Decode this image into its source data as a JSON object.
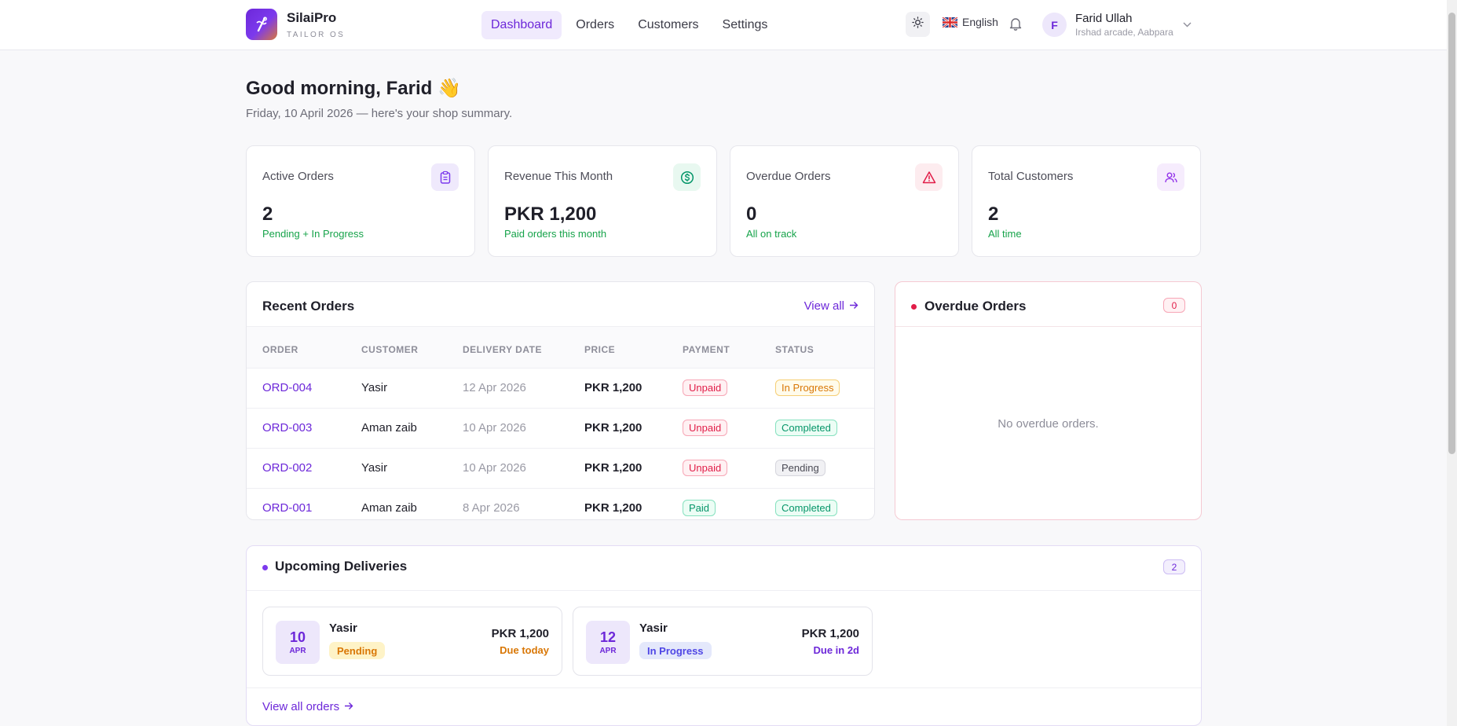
{
  "brand": {
    "name": "SilaiPro",
    "tagline": "TAILOR OS",
    "logo_icon": "needle-logo-icon"
  },
  "nav": {
    "items": [
      {
        "label": "Dashboard",
        "active": true
      },
      {
        "label": "Orders",
        "active": false
      },
      {
        "label": "Customers",
        "active": false
      },
      {
        "label": "Settings",
        "active": false
      }
    ]
  },
  "header": {
    "theme_icon": "sun-icon",
    "language": "English",
    "notification_icon": "bell-icon",
    "user": {
      "initial": "F",
      "name": "Farid Ullah",
      "location": "Irshad arcade, Aabpara"
    }
  },
  "greeting": {
    "title": "Good morning, Farid 👋",
    "subtitle": "Friday, 10 April 2026 — here's your shop summary."
  },
  "stats": [
    {
      "label": "Active Orders",
      "value": "2",
      "note": "Pending + In Progress",
      "icon": "clipboard-icon",
      "icon_color": "#7c3aed",
      "icon_bg": "#efe9fc"
    },
    {
      "label": "Revenue This Month",
      "value": "PKR 1,200",
      "note": "Paid orders this month",
      "icon": "dollar-circle-icon",
      "icon_color": "#059669",
      "icon_bg": "#e8f8f0"
    },
    {
      "label": "Overdue Orders",
      "value": "0",
      "note": "All on track",
      "icon": "warning-icon",
      "icon_color": "#e11d48",
      "icon_bg": "#fdecef"
    },
    {
      "label": "Total Customers",
      "value": "2",
      "note": "All time",
      "icon": "users-icon",
      "icon_color": "#9333ea",
      "icon_bg": "#f6ecfd"
    }
  ],
  "recent_orders": {
    "title": "Recent Orders",
    "view_all": "View all",
    "columns": [
      "ORDER",
      "CUSTOMER",
      "DELIVERY DATE",
      "PRICE",
      "PAYMENT",
      "STATUS"
    ],
    "rows": [
      {
        "order": "ORD-004",
        "customer": "Yasir",
        "date": "12 Apr 2026",
        "price": "PKR 1,200",
        "payment": "Unpaid",
        "status": "In Progress"
      },
      {
        "order": "ORD-003",
        "customer": "Aman zaib",
        "date": "10 Apr 2026",
        "price": "PKR 1,200",
        "payment": "Unpaid",
        "status": "Completed"
      },
      {
        "order": "ORD-002",
        "customer": "Yasir",
        "date": "10 Apr 2026",
        "price": "PKR 1,200",
        "payment": "Unpaid",
        "status": "Pending"
      },
      {
        "order": "ORD-001",
        "customer": "Aman zaib",
        "date": "8 Apr 2026",
        "price": "PKR 1,200",
        "payment": "Paid",
        "status": "Completed"
      }
    ]
  },
  "overdue": {
    "title": "Overdue Orders",
    "count": "0",
    "empty": "No overdue orders."
  },
  "upcoming": {
    "title": "Upcoming Deliveries",
    "count": "2",
    "items": [
      {
        "day": "10",
        "month": "APR",
        "customer": "Yasir",
        "status": "Pending",
        "price": "PKR 1,200",
        "due": "Due today"
      },
      {
        "day": "12",
        "month": "APR",
        "customer": "Yasir",
        "status": "In Progress",
        "price": "PKR 1,200",
        "due": "Due in 2d"
      }
    ],
    "view_all_orders": "View all orders"
  }
}
